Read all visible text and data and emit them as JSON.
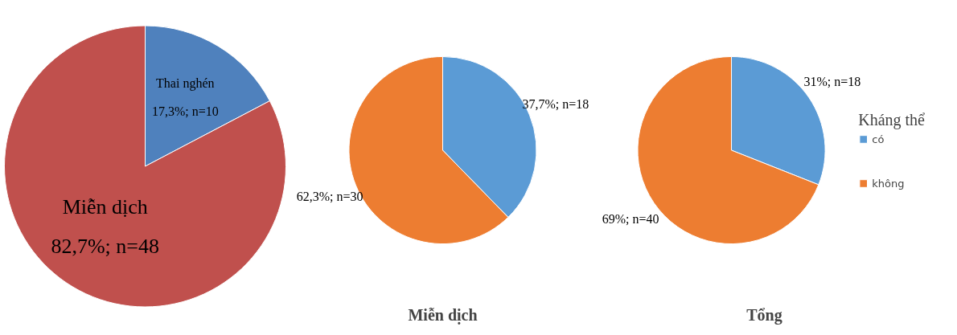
{
  "chart_data": [
    {
      "type": "pie",
      "categories": [
        "Thai nghén",
        "Miễn dịch"
      ],
      "values": [
        17.3,
        82.7
      ],
      "colors": [
        "#4f81bd",
        "#c0504d"
      ],
      "value_labels": [
        "17,3%; n=10",
        "82,7%; n=48"
      ]
    },
    {
      "type": "pie",
      "title": "Miễn dịch",
      "categories": [
        null,
        null
      ],
      "values": [
        37.7,
        62.3
      ],
      "colors": [
        "#5b9bd5",
        "#ed7d31"
      ],
      "value_labels": [
        "37,7%; n=18",
        "62,3%; n=30"
      ]
    },
    {
      "type": "pie",
      "title": "Tổng",
      "categories": [
        "có",
        "không"
      ],
      "values": [
        31,
        69
      ],
      "colors": [
        "#5b9bd5",
        "#ed7d31"
      ],
      "value_labels": [
        "31%; n=18",
        "69%; n=40"
      ],
      "legend": "right",
      "legend_title": "Kháng thể"
    }
  ]
}
